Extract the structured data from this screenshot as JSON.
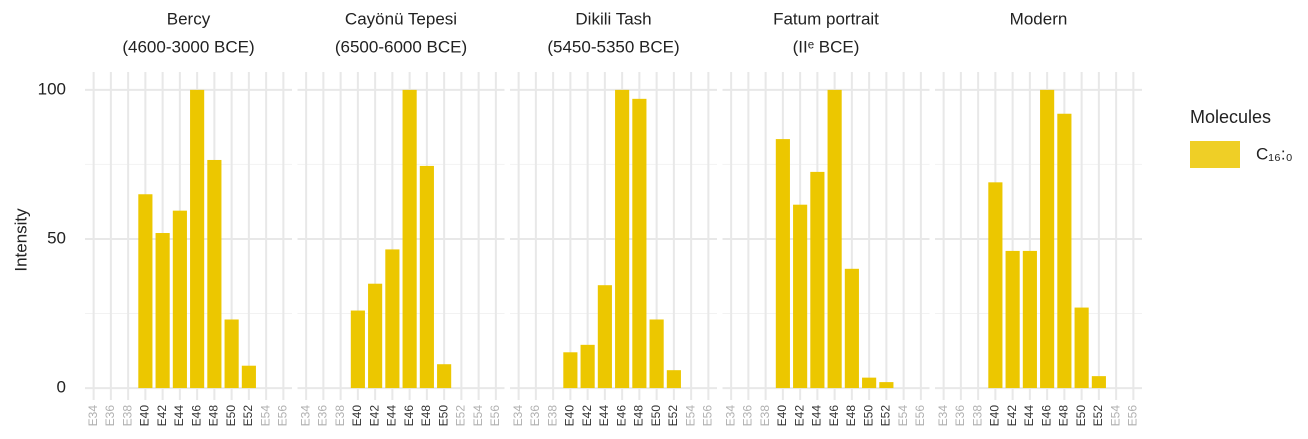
{
  "chart_data": {
    "type": "bar",
    "ylabel": "Intensity",
    "legend_title": "Molecules",
    "legend": "right",
    "grid": true,
    "series": [
      {
        "name": "C₁₆:₀",
        "color": "#ecc700"
      }
    ],
    "categories": [
      "E34",
      "E36",
      "E38",
      "E40",
      "E42",
      "E44",
      "E46",
      "E48",
      "E50",
      "E52",
      "E54",
      "E56"
    ],
    "ylim": [
      -4,
      106
    ],
    "yticks": [
      0,
      50,
      100
    ],
    "minor_yticks": [
      25,
      75
    ],
    "facets": [
      {
        "title": "Bercy",
        "subtitle": "(4600-3000 BCE)",
        "values": [
          null,
          null,
          null,
          65,
          52,
          59.5,
          100,
          76.5,
          23,
          7.5,
          null,
          null
        ]
      },
      {
        "title": "Cayönü Tepesi",
        "subtitle": "(6500-6000 BCE)",
        "values": [
          null,
          null,
          null,
          26,
          35,
          46.5,
          100,
          74.5,
          8,
          null,
          null,
          null
        ]
      },
      {
        "title": "Dikili Tash",
        "subtitle": "(5450-5350 BCE)",
        "values": [
          null,
          null,
          null,
          12,
          14.5,
          34.5,
          100,
          97,
          23,
          6,
          null,
          null
        ]
      },
      {
        "title": "Fatum portrait",
        "subtitle": "(IIᵉ BCE)",
        "values": [
          null,
          null,
          null,
          83.5,
          61.5,
          72.5,
          100,
          40,
          3.5,
          2,
          null,
          null
        ]
      },
      {
        "title": "Modern",
        "values": [
          null,
          null,
          null,
          69,
          46,
          46,
          100,
          92,
          27,
          4,
          null,
          null
        ]
      }
    ]
  }
}
